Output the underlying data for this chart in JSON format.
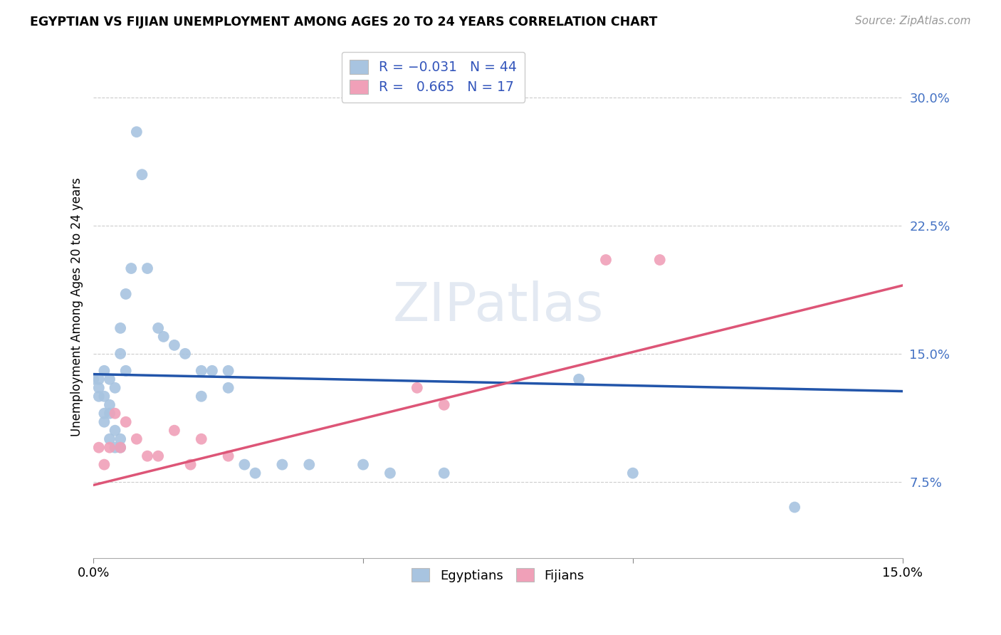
{
  "title": "EGYPTIAN VS FIJIAN UNEMPLOYMENT AMONG AGES 20 TO 24 YEARS CORRELATION CHART",
  "source": "Source: ZipAtlas.com",
  "ylabel_label": "Unemployment Among Ages 20 to 24 years",
  "xlim": [
    0.0,
    0.15
  ],
  "ylim": [
    0.03,
    0.325
  ],
  "yticks": [
    0.075,
    0.15,
    0.225,
    0.3
  ],
  "yticklabels": [
    "7.5%",
    "15.0%",
    "22.5%",
    "30.0%"
  ],
  "xtick_positions": [
    0.0,
    0.05,
    0.1,
    0.15
  ],
  "xticklabels": [
    "0.0%",
    "",
    "",
    "15.0%"
  ],
  "legend_r_egyptian": "-0.031",
  "legend_n_egyptian": "44",
  "legend_r_fijian": "0.665",
  "legend_n_fijian": "17",
  "egyptian_color": "#a8c4e0",
  "fijian_color": "#f0a0b8",
  "line_egyptian_color": "#2255aa",
  "line_fijian_color": "#dd5577",
  "egyptians_x": [
    0.0,
    0.001,
    0.001,
    0.001,
    0.002,
    0.002,
    0.002,
    0.002,
    0.003,
    0.003,
    0.003,
    0.003,
    0.004,
    0.004,
    0.004,
    0.005,
    0.005,
    0.005,
    0.005,
    0.006,
    0.006,
    0.007,
    0.008,
    0.009,
    0.01,
    0.012,
    0.013,
    0.015,
    0.017,
    0.02,
    0.02,
    0.022,
    0.025,
    0.025,
    0.028,
    0.03,
    0.035,
    0.04,
    0.05,
    0.055,
    0.065,
    0.09,
    0.1,
    0.13
  ],
  "egyptians_y": [
    0.135,
    0.125,
    0.13,
    0.135,
    0.11,
    0.115,
    0.125,
    0.14,
    0.1,
    0.115,
    0.12,
    0.135,
    0.095,
    0.105,
    0.13,
    0.095,
    0.1,
    0.15,
    0.165,
    0.14,
    0.185,
    0.2,
    0.28,
    0.255,
    0.2,
    0.165,
    0.16,
    0.155,
    0.15,
    0.125,
    0.14,
    0.14,
    0.13,
    0.14,
    0.085,
    0.08,
    0.085,
    0.085,
    0.085,
    0.08,
    0.08,
    0.135,
    0.08,
    0.06
  ],
  "fijians_x": [
    0.001,
    0.002,
    0.003,
    0.004,
    0.005,
    0.006,
    0.008,
    0.01,
    0.012,
    0.015,
    0.018,
    0.02,
    0.025,
    0.06,
    0.065,
    0.095,
    0.105
  ],
  "fijians_y": [
    0.095,
    0.085,
    0.095,
    0.115,
    0.095,
    0.11,
    0.1,
    0.09,
    0.09,
    0.105,
    0.085,
    0.1,
    0.09,
    0.13,
    0.12,
    0.205,
    0.205
  ],
  "eg_line_x0": 0.0,
  "eg_line_x1": 0.15,
  "eg_line_y0": 0.138,
  "eg_line_y1": 0.128,
  "fij_line_x0": 0.0,
  "fij_line_x1": 0.15,
  "fij_line_y0": 0.073,
  "fij_line_y1": 0.19
}
